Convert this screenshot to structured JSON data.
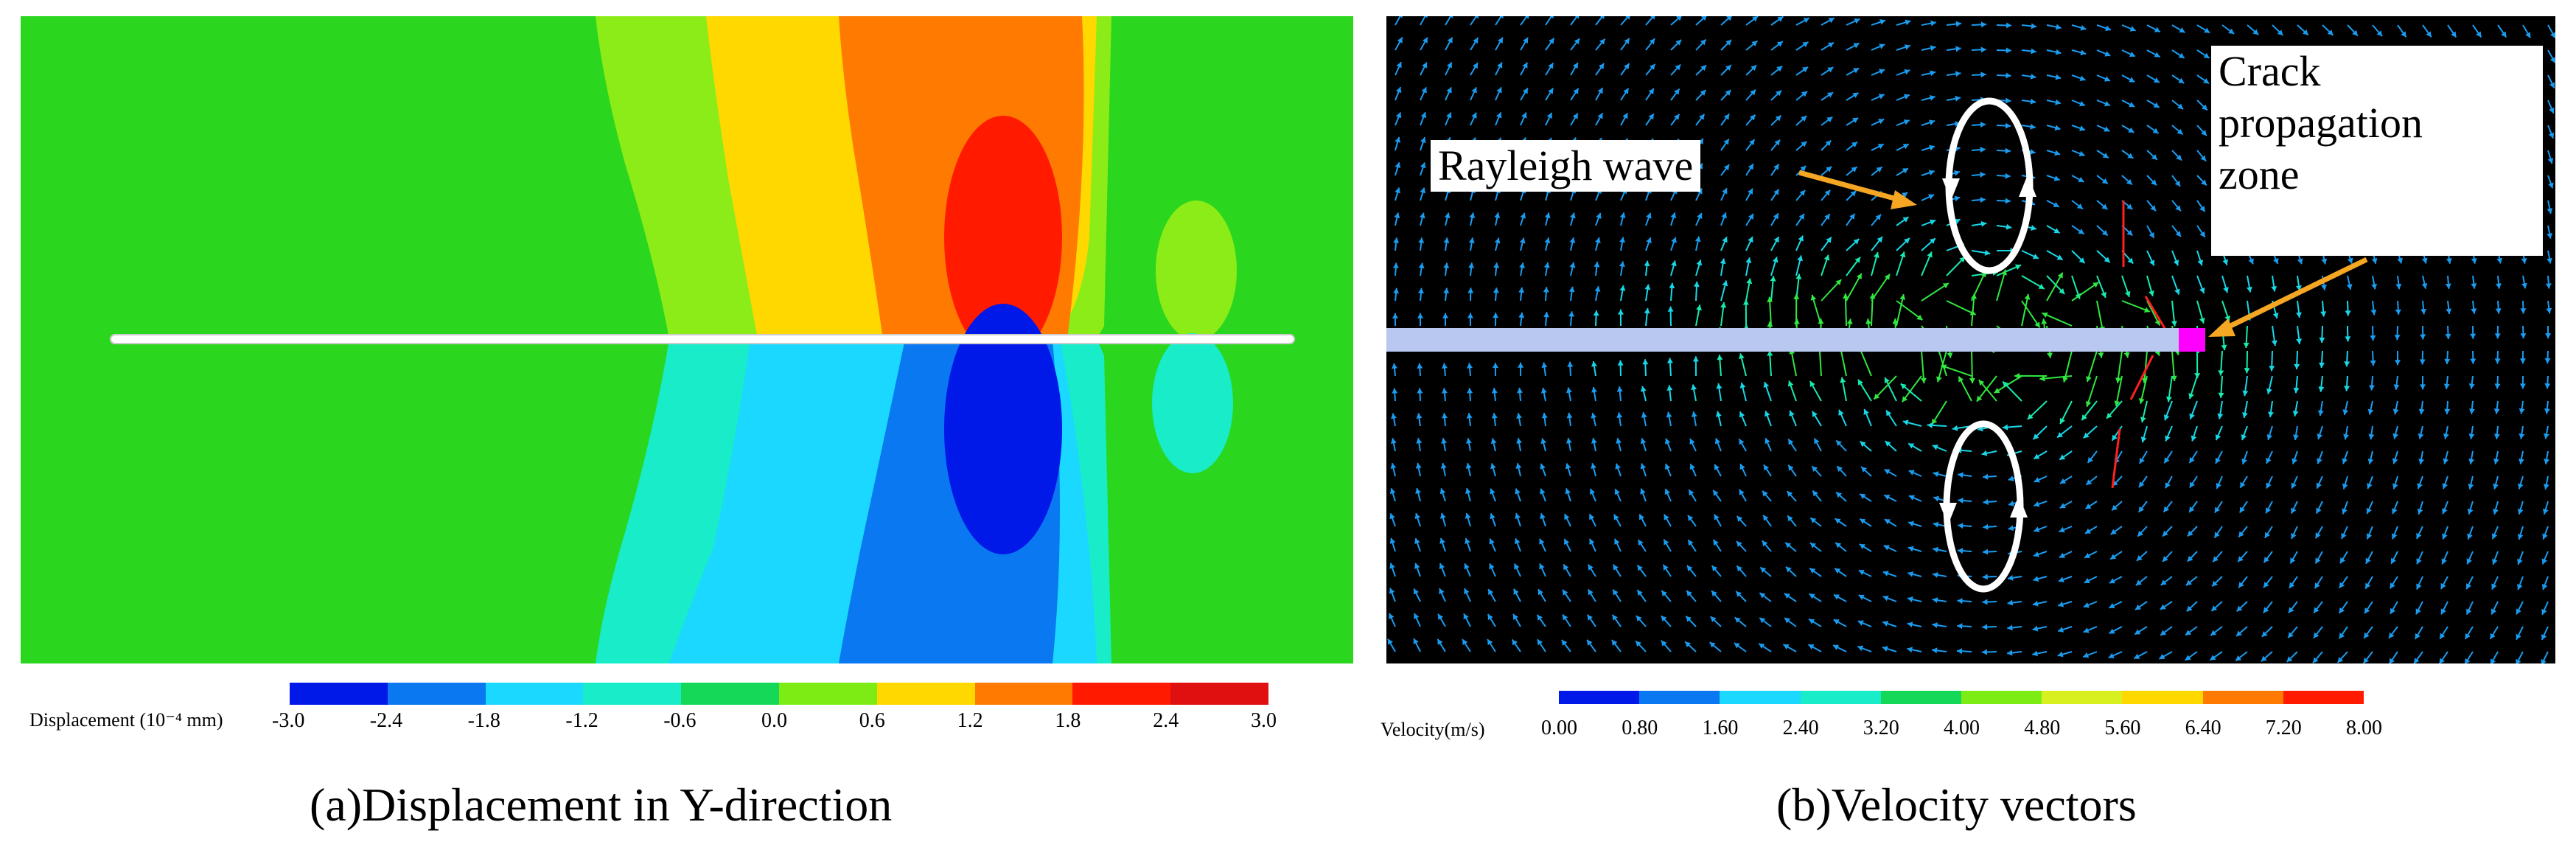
{
  "panel_a": {
    "caption": "(a)Displacement in Y-direction",
    "legend": {
      "title": "Displacement (10⁻⁴ mm)",
      "ticks": [
        "-3.0",
        "-2.4",
        "-1.8",
        "-1.2",
        "-0.6",
        "0.0",
        "0.6",
        "1.2",
        "1.8",
        "2.4",
        "3.0"
      ],
      "colors": [
        "#0018e8",
        "#0a78f0",
        "#1ad8ff",
        "#18ecc8",
        "#15d858",
        "#7dec14",
        "#ffd800",
        "#ff7a00",
        "#ff1a00",
        "#e01010"
      ]
    }
  },
  "panel_b": {
    "caption": "(b)Velocity vectors",
    "annotations": {
      "rayleigh": "Rayleigh wave",
      "crack": [
        "Crack",
        "propagation",
        "zone"
      ]
    },
    "legend": {
      "title": "Velocity(m/s)",
      "ticks": [
        "0.00",
        "0.80",
        "1.60",
        "2.40",
        "3.20",
        "4.00",
        "4.80",
        "5.60",
        "6.40",
        "7.20",
        "8.00"
      ],
      "colors": [
        "#0018e8",
        "#0a78f0",
        "#1ad8ff",
        "#18ecc8",
        "#15d858",
        "#7dec14",
        "#d8f020",
        "#ffd800",
        "#ff7a00",
        "#ff1a00"
      ]
    }
  },
  "colors": {
    "arrow_annotation": "#f5a623",
    "crack_line": "#b8c8f0",
    "crack_tip": "#ff00ff"
  }
}
